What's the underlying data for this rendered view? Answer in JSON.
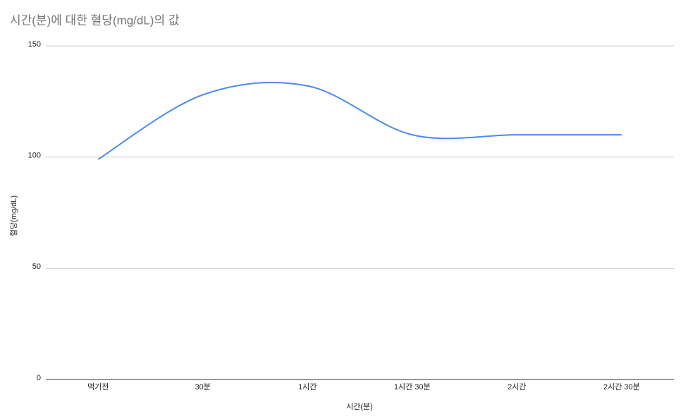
{
  "chart_data": {
    "type": "line",
    "title": "시간(분)에 대한 혈당(mg/dL)의 값",
    "x_label": "시간(분)",
    "y_label": "혈당(mg/dL)",
    "categories": [
      "먹기전",
      "30분",
      "1시간",
      "1시간 30분",
      "2시간",
      "2시간 30분"
    ],
    "series": [
      {
        "name": "혈당(mg/dL)",
        "color": "#4a8af4",
        "values": [
          99,
          128,
          132,
          110,
          110,
          110
        ]
      }
    ],
    "ylim": [
      0,
      150
    ],
    "yticks": [
      0,
      50,
      100,
      150
    ],
    "grid": true,
    "smooth": true
  }
}
